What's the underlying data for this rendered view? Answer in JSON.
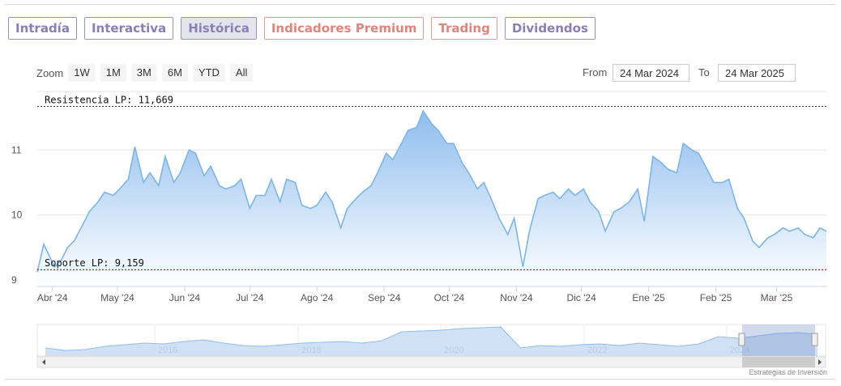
{
  "tabs": [
    {
      "label": "Intradía",
      "style": "purple"
    },
    {
      "label": "Interactiva",
      "style": "purple"
    },
    {
      "label": "Histórica",
      "style": "purple",
      "active": true
    },
    {
      "label": "Indicadores Premium",
      "style": "red"
    },
    {
      "label": "Trading",
      "style": "red"
    },
    {
      "label": "Dividendos",
      "style": "purple"
    }
  ],
  "zoom": {
    "label": "Zoom",
    "buttons": [
      "1W",
      "1M",
      "3M",
      "6M",
      "YTD",
      "All"
    ]
  },
  "range": {
    "from_label": "From",
    "from_value": "24 Mar 2024",
    "to_label": "To",
    "to_value": "24 Mar 2025"
  },
  "colors": {
    "line": "#7cb5ec",
    "fill_top": "#8fbdee",
    "fill_bottom": "#ffffff",
    "support": "#8b0000",
    "tab_purple": "#8a7fb4",
    "tab_red": "#e3847c"
  },
  "credit": "Estrategias de Inversión",
  "chart_data": {
    "type": "area",
    "title": "",
    "xlabel": "",
    "ylabel": "",
    "ylim": [
      8.9,
      11.9
    ],
    "y_ticks": [
      {
        "value": 9,
        "label": "9"
      },
      {
        "value": 10,
        "label": "10"
      },
      {
        "value": 11,
        "label": "11"
      }
    ],
    "x_ticks": [
      {
        "x": "2024-04-01",
        "label": "Abr '24"
      },
      {
        "x": "2024-05-01",
        "label": "May '24"
      },
      {
        "x": "2024-06-01",
        "label": "Jun '24"
      },
      {
        "x": "2024-07-01",
        "label": "Jul '24"
      },
      {
        "x": "2024-08-01",
        "label": "Ago '24"
      },
      {
        "x": "2024-09-01",
        "label": "Sep '24"
      },
      {
        "x": "2024-10-01",
        "label": "Oct '24"
      },
      {
        "x": "2024-11-01",
        "label": "Nov '24"
      },
      {
        "x": "2024-12-01",
        "label": "Dic '24"
      },
      {
        "x": "2025-01-01",
        "label": "Ene '25"
      },
      {
        "x": "2025-02-01",
        "label": "Feb '25"
      },
      {
        "x": "2025-03-01",
        "label": "Mar '25"
      }
    ],
    "annotations": [
      {
        "type": "hline",
        "value": 11.669,
        "label": "Resistencia LP: 11,669",
        "color": "#333333"
      },
      {
        "type": "hline",
        "value": 9.159,
        "label": "Soporte LP: 9,159",
        "color": "#8b0000"
      }
    ],
    "grid": true,
    "legend": "none",
    "series": [
      {
        "x": [
          "2024-03-25",
          "2024-03-28",
          "2024-04-02",
          "2024-04-05",
          "2024-04-08",
          "2024-04-11",
          "2024-04-15",
          "2024-04-18",
          "2024-04-22",
          "2024-04-25",
          "2024-04-29",
          "2024-05-02",
          "2024-05-06",
          "2024-05-09",
          "2024-05-13",
          "2024-05-16",
          "2024-05-20",
          "2024-05-23",
          "2024-05-27",
          "2024-05-30",
          "2024-06-03",
          "2024-06-06",
          "2024-06-10",
          "2024-06-13",
          "2024-06-17",
          "2024-06-20",
          "2024-06-24",
          "2024-06-27",
          "2024-07-01",
          "2024-07-04",
          "2024-07-08",
          "2024-07-11",
          "2024-07-15",
          "2024-07-18",
          "2024-07-22",
          "2024-07-25",
          "2024-07-29",
          "2024-08-01",
          "2024-08-05",
          "2024-08-08",
          "2024-08-12",
          "2024-08-15",
          "2024-08-19",
          "2024-08-22",
          "2024-08-26",
          "2024-08-29",
          "2024-09-02",
          "2024-09-05",
          "2024-09-09",
          "2024-09-12",
          "2024-09-16",
          "2024-09-19",
          "2024-09-23",
          "2024-09-26",
          "2024-09-30",
          "2024-10-03",
          "2024-10-07",
          "2024-10-10",
          "2024-10-14",
          "2024-10-17",
          "2024-10-21",
          "2024-10-24",
          "2024-10-28",
          "2024-10-31",
          "2024-11-04",
          "2024-11-07",
          "2024-11-11",
          "2024-11-14",
          "2024-11-18",
          "2024-11-21",
          "2024-11-25",
          "2024-11-28",
          "2024-12-02",
          "2024-12-05",
          "2024-12-09",
          "2024-12-12",
          "2024-12-16",
          "2024-12-19",
          "2024-12-23",
          "2024-12-27",
          "2024-12-30",
          "2025-01-03",
          "2025-01-07",
          "2025-01-10",
          "2025-01-14",
          "2025-01-17",
          "2025-01-21",
          "2025-01-24",
          "2025-01-28",
          "2025-01-31",
          "2025-02-04",
          "2025-02-07",
          "2025-02-11",
          "2025-02-14",
          "2025-02-18",
          "2025-02-21",
          "2025-02-25",
          "2025-02-28",
          "2025-03-04",
          "2025-03-07",
          "2025-03-11",
          "2025-03-14",
          "2025-03-18",
          "2025-03-21",
          "2025-03-24"
        ],
        "values": [
          9.12,
          9.55,
          9.2,
          9.3,
          9.5,
          9.6,
          9.85,
          10.05,
          10.2,
          10.35,
          10.3,
          10.4,
          10.55,
          11.05,
          10.5,
          10.65,
          10.45,
          10.9,
          10.5,
          10.65,
          11.0,
          10.95,
          10.6,
          10.75,
          10.45,
          10.4,
          10.45,
          10.55,
          10.1,
          10.3,
          10.3,
          10.55,
          10.2,
          10.55,
          10.5,
          10.15,
          10.1,
          10.15,
          10.35,
          10.2,
          9.8,
          10.1,
          10.25,
          10.35,
          10.45,
          10.65,
          10.95,
          10.85,
          11.1,
          11.3,
          11.35,
          11.6,
          11.4,
          11.3,
          11.1,
          11.1,
          10.8,
          10.65,
          10.4,
          10.5,
          10.2,
          9.95,
          9.7,
          9.95,
          9.2,
          9.75,
          10.25,
          10.3,
          10.35,
          10.25,
          10.4,
          10.3,
          10.4,
          10.2,
          10.05,
          9.75,
          10.05,
          10.1,
          10.2,
          10.4,
          9.9,
          10.9,
          10.8,
          10.7,
          10.65,
          11.1,
          11.0,
          10.95,
          10.7,
          10.5,
          10.5,
          10.55,
          10.1,
          9.95,
          9.6,
          9.5,
          9.65,
          9.7,
          9.8,
          9.75,
          9.8,
          9.7,
          9.65,
          9.8,
          9.75
        ]
      }
    ],
    "navigator": {
      "x_ticks": [
        "2016",
        "2018",
        "2020",
        "2022",
        "2024"
      ]
    }
  }
}
